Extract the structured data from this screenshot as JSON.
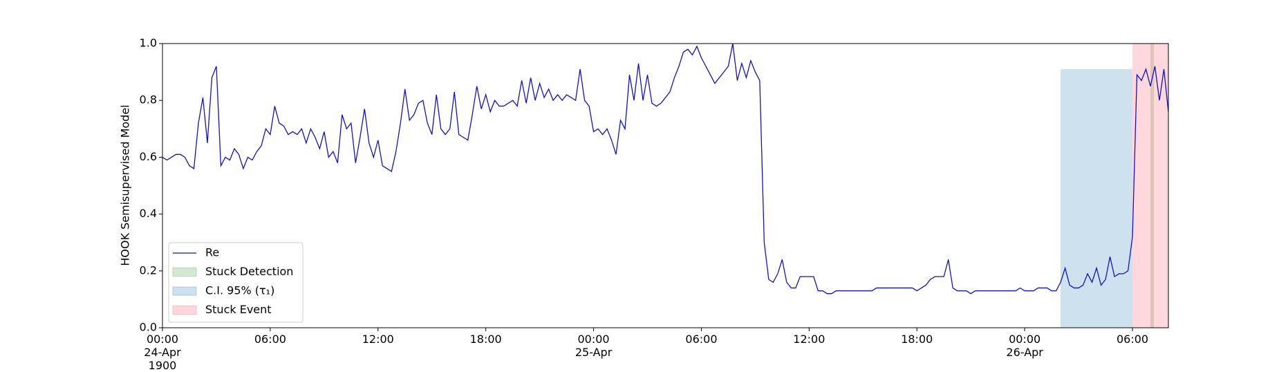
{
  "chart_data": {
    "type": "line",
    "ylabel": "HOOK Semisupervised Model",
    "xlim": [
      0,
      56
    ],
    "ylim": [
      0,
      1
    ],
    "xticks": [
      {
        "value": 0,
        "label": "00:00\n24-Apr\n1900"
      },
      {
        "value": 6,
        "label": "06:00"
      },
      {
        "value": 12,
        "label": "12:00"
      },
      {
        "value": 18,
        "label": "18:00"
      },
      {
        "value": 24,
        "label": "00:00\n25-Apr"
      },
      {
        "value": 30,
        "label": "06:00"
      },
      {
        "value": 36,
        "label": "12:00"
      },
      {
        "value": 42,
        "label": "18:00"
      },
      {
        "value": 48,
        "label": "00:00\n26-Apr"
      },
      {
        "value": 54,
        "label": "06:00"
      }
    ],
    "yticks": [
      {
        "value": 0,
        "label": "0.0"
      },
      {
        "value": 0.2,
        "label": "0.2"
      },
      {
        "value": 0.4,
        "label": "0.4"
      },
      {
        "value": 0.6,
        "label": "0.6"
      },
      {
        "value": 0.8,
        "label": "0.8"
      },
      {
        "value": 1,
        "label": "1.0"
      }
    ],
    "x": [
      0,
      0.25,
      0.5,
      0.75,
      1,
      1.25,
      1.5,
      1.75,
      2,
      2.25,
      2.5,
      2.75,
      3,
      3.25,
      3.5,
      3.75,
      4,
      4.25,
      4.5,
      4.75,
      5,
      5.25,
      5.5,
      5.75,
      6,
      6.25,
      6.5,
      6.75,
      7,
      7.25,
      7.5,
      7.75,
      8,
      8.25,
      8.5,
      8.75,
      9,
      9.25,
      9.5,
      9.75,
      10,
      10.25,
      10.5,
      10.75,
      11,
      11.25,
      11.5,
      11.75,
      12,
      12.25,
      12.5,
      12.75,
      13,
      13.25,
      13.5,
      13.75,
      14,
      14.25,
      14.5,
      14.75,
      15,
      15.25,
      15.5,
      15.75,
      16,
      16.25,
      16.5,
      16.75,
      17,
      17.25,
      17.5,
      17.75,
      18,
      18.25,
      18.5,
      18.75,
      19,
      19.25,
      19.5,
      19.75,
      20,
      20.25,
      20.5,
      20.75,
      21,
      21.25,
      21.5,
      21.75,
      22,
      22.25,
      22.5,
      22.75,
      23,
      23.25,
      23.5,
      23.75,
      24,
      24.25,
      24.5,
      24.75,
      25,
      25.25,
      25.5,
      25.75,
      26,
      26.25,
      26.5,
      26.75,
      27,
      27.25,
      27.5,
      27.75,
      28,
      28.25,
      28.5,
      28.75,
      29,
      29.25,
      29.5,
      29.75,
      30,
      30.25,
      30.5,
      30.75,
      31,
      31.25,
      31.5,
      31.75,
      32,
      32.25,
      32.5,
      32.75,
      33,
      33.25,
      33.5,
      33.75,
      34,
      34.25,
      34.5,
      34.75,
      35,
      35.25,
      35.5,
      35.75,
      36,
      36.25,
      36.5,
      36.75,
      37,
      37.25,
      37.5,
      37.75,
      38,
      38.25,
      38.5,
      38.75,
      39,
      39.25,
      39.5,
      39.75,
      40,
      40.25,
      40.5,
      40.75,
      41,
      41.25,
      41.5,
      41.75,
      42,
      42.25,
      42.5,
      42.75,
      43,
      43.25,
      43.5,
      43.75,
      44,
      44.25,
      44.5,
      44.75,
      45,
      45.25,
      45.5,
      45.75,
      46,
      46.25,
      46.5,
      46.75,
      47,
      47.25,
      47.5,
      47.75,
      48,
      48.25,
      48.5,
      48.75,
      49,
      49.25,
      49.5,
      49.75,
      50,
      50.25,
      50.5,
      50.75,
      51,
      51.25,
      51.5,
      51.75,
      52,
      52.25,
      52.5,
      52.75,
      53,
      53.25,
      53.5,
      53.75,
      54,
      54.25,
      54.5,
      54.75,
      55,
      55.25,
      55.5,
      55.75,
      56
    ],
    "series": [
      {
        "name": "Re",
        "color": "#1010d0",
        "values": [
          0.6,
          0.59,
          0.6,
          0.61,
          0.61,
          0.6,
          0.57,
          0.56,
          0.72,
          0.81,
          0.65,
          0.88,
          0.92,
          0.57,
          0.6,
          0.59,
          0.63,
          0.61,
          0.56,
          0.6,
          0.59,
          0.62,
          0.64,
          0.7,
          0.68,
          0.78,
          0.72,
          0.71,
          0.68,
          0.69,
          0.68,
          0.7,
          0.65,
          0.7,
          0.67,
          0.63,
          0.69,
          0.6,
          0.62,
          0.58,
          0.75,
          0.7,
          0.72,
          0.58,
          0.67,
          0.77,
          0.65,
          0.6,
          0.66,
          0.57,
          0.56,
          0.55,
          0.62,
          0.72,
          0.84,
          0.73,
          0.75,
          0.79,
          0.8,
          0.72,
          0.68,
          0.82,
          0.7,
          0.68,
          0.7,
          0.83,
          0.68,
          0.67,
          0.66,
          0.75,
          0.85,
          0.77,
          0.82,
          0.76,
          0.8,
          0.78,
          0.78,
          0.79,
          0.8,
          0.78,
          0.87,
          0.79,
          0.88,
          0.8,
          0.86,
          0.81,
          0.84,
          0.8,
          0.82,
          0.8,
          0.82,
          0.81,
          0.8,
          0.91,
          0.8,
          0.78,
          0.69,
          0.7,
          0.68,
          0.7,
          0.66,
          0.61,
          0.73,
          0.7,
          0.89,
          0.8,
          0.93,
          0.8,
          0.89,
          0.79,
          0.78,
          0.79,
          0.81,
          0.83,
          0.88,
          0.92,
          0.97,
          0.98,
          0.96,
          0.99,
          0.95,
          0.92,
          0.89,
          0.86,
          0.88,
          0.9,
          0.92,
          1.0,
          0.87,
          0.93,
          0.88,
          0.94,
          0.9,
          0.87,
          0.3,
          0.17,
          0.16,
          0.19,
          0.24,
          0.16,
          0.14,
          0.14,
          0.18,
          0.18,
          0.18,
          0.18,
          0.13,
          0.13,
          0.12,
          0.12,
          0.13,
          0.13,
          0.13,
          0.13,
          0.13,
          0.13,
          0.13,
          0.13,
          0.13,
          0.14,
          0.14,
          0.14,
          0.14,
          0.14,
          0.14,
          0.14,
          0.14,
          0.14,
          0.13,
          0.14,
          0.15,
          0.17,
          0.18,
          0.18,
          0.18,
          0.24,
          0.14,
          0.13,
          0.13,
          0.13,
          0.12,
          0.13,
          0.13,
          0.13,
          0.13,
          0.13,
          0.13,
          0.13,
          0.13,
          0.13,
          0.13,
          0.14,
          0.13,
          0.13,
          0.13,
          0.14,
          0.14,
          0.14,
          0.13,
          0.13,
          0.16,
          0.21,
          0.15,
          0.14,
          0.14,
          0.15,
          0.19,
          0.16,
          0.21,
          0.15,
          0.17,
          0.25,
          0.18,
          0.19,
          0.19,
          0.2,
          0.32,
          0.89,
          0.87,
          0.91,
          0.85,
          0.92,
          0.8,
          0.91,
          0.76
        ]
      }
    ],
    "spans": [
      {
        "name": "Stuck Detection",
        "color": "#2ca02c",
        "x": [
          55.0,
          55.2
        ]
      },
      {
        "name": "C.I. 95% (τ₁)",
        "color": "#1f77b4",
        "x": [
          50.0,
          54.0
        ],
        "y": [
          0,
          0.91
        ]
      },
      {
        "name": "Stuck Event",
        "color": "#ff4d6a",
        "x": [
          54.0,
          56.0
        ]
      }
    ],
    "legend": "lower left"
  }
}
